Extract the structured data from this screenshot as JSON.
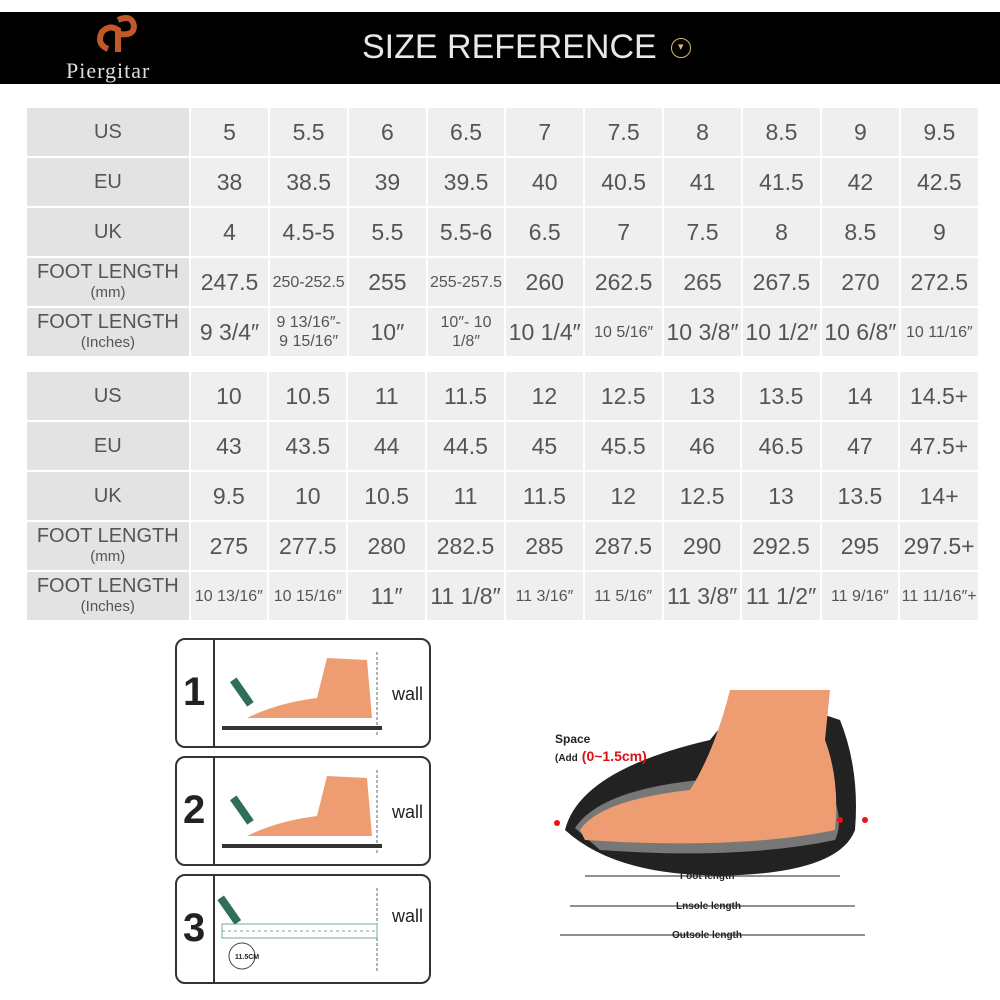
{
  "header": {
    "brand": "Piergitar",
    "title": "SIZE REFERENCE",
    "accent": "#d8b86a"
  },
  "tables": [
    {
      "rows": [
        {
          "label": "US",
          "cells": [
            "5",
            "5.5",
            "6",
            "6.5",
            "7",
            "7.5",
            "8",
            "8.5",
            "9",
            "9.5"
          ]
        },
        {
          "label": "EU",
          "cells": [
            "38",
            "38.5",
            "39",
            "39.5",
            "40",
            "40.5",
            "41",
            "41.5",
            "42",
            "42.5"
          ]
        },
        {
          "label": "UK",
          "cells": [
            "4",
            "4.5-5",
            "5.5",
            "5.5-6",
            "6.5",
            "7",
            "7.5",
            "8",
            "8.5",
            "9"
          ]
        },
        {
          "label": "FOOT LENGTH",
          "sublabel": "(mm)",
          "cells": [
            "247.5",
            "250-252.5",
            "255",
            "255-257.5",
            "260",
            "262.5",
            "265",
            "267.5",
            "270",
            "272.5"
          ]
        },
        {
          "label": "FOOT LENGTH",
          "sublabel": "(Inches)",
          "cells": [
            "9 3/4″",
            "9 13/16″- 9 15/16″",
            "10″",
            "10″- 10 1/8″",
            "10 1/4″",
            "10 5/16″",
            "10 3/8″",
            "10 1/2″",
            "10 6/8″",
            "10 11/16″"
          ]
        }
      ]
    },
    {
      "rows": [
        {
          "label": "US",
          "cells": [
            "10",
            "10.5",
            "11",
            "11.5",
            "12",
            "12.5",
            "13",
            "13.5",
            "14",
            "14.5+"
          ]
        },
        {
          "label": "EU",
          "cells": [
            "43",
            "43.5",
            "44",
            "44.5",
            "45",
            "45.5",
            "46",
            "46.5",
            "47",
            "47.5+"
          ]
        },
        {
          "label": "UK",
          "cells": [
            "9.5",
            "10",
            "10.5",
            "11",
            "11.5",
            "12",
            "12.5",
            "13",
            "13.5",
            "14+"
          ]
        },
        {
          "label": "FOOT LENGTH",
          "sublabel": "(mm)",
          "cells": [
            "275",
            "277.5",
            "280",
            "282.5",
            "285",
            "287.5",
            "290",
            "292.5",
            "295",
            "297.5+"
          ]
        },
        {
          "label": "FOOT LENGTH",
          "sublabel": "(Inches)",
          "cells": [
            "10 13/16″",
            "10 15/16″",
            "11″",
            "11 1/8″",
            "11 3/16″",
            "11 5/16″",
            "11 3/8″",
            "11 1/2″",
            "11 9/16″",
            "11 11/16″+"
          ]
        }
      ]
    }
  ],
  "steps": [
    {
      "num": "1",
      "wall": "wall"
    },
    {
      "num": "2",
      "wall": "wall"
    },
    {
      "num": "3",
      "wall": "wall",
      "measure": "11.5CM"
    }
  ],
  "shoe": {
    "space": "Space",
    "add": "(Add",
    "range": "(0~1.5cm)",
    "foot": "Foot length",
    "insole": "Lnsole length",
    "outsole": "Outsole length"
  }
}
